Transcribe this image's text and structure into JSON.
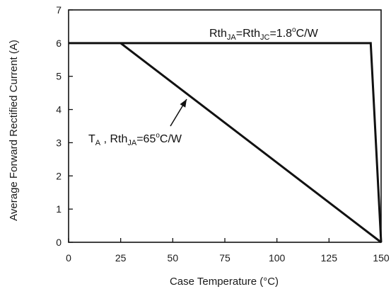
{
  "chart_data": {
    "type": "line",
    "xlabel": "Case Temperature (°C)",
    "ylabel": "Average Forward Rectified Current (A)",
    "xlim": [
      0,
      150
    ],
    "ylim": [
      0,
      7
    ],
    "xticks": [
      0,
      25,
      50,
      75,
      100,
      125,
      150
    ],
    "yticks": [
      0,
      1,
      2,
      3,
      4,
      5,
      6,
      7
    ],
    "grid": false,
    "series": [
      {
        "id": "rth_jc",
        "points": [
          [
            0,
            6
          ],
          [
            145,
            6
          ],
          [
            150,
            0
          ]
        ]
      },
      {
        "id": "ta",
        "points": [
          [
            25,
            6
          ],
          [
            150,
            0
          ]
        ]
      }
    ],
    "annotations": [
      {
        "id": "rth_jc",
        "parts": [
          {
            "t": "Rth"
          },
          {
            "t": "JA",
            "sub": true
          },
          {
            "t": "=Rth"
          },
          {
            "t": "JC",
            "sub": true
          },
          {
            "t": "=1.8"
          },
          {
            "t": "o",
            "sup": true
          },
          {
            "t": "C/W"
          }
        ]
      },
      {
        "id": "ta",
        "parts": [
          {
            "t": "T"
          },
          {
            "t": "A",
            "sub": true
          },
          {
            "t": " , Rth"
          },
          {
            "t": "JA",
            "sub": true
          },
          {
            "t": "=65"
          },
          {
            "t": "o",
            "sup": true
          },
          {
            "t": "C/W"
          }
        ]
      }
    ],
    "colors": {
      "line": "#111111",
      "axis": "#111111",
      "text": "#1a1a1a"
    }
  }
}
